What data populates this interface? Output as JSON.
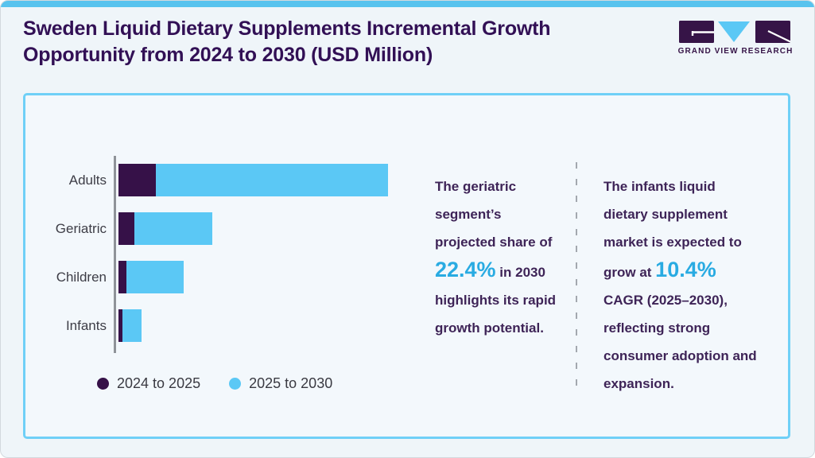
{
  "page": {
    "title_line1": "Sweden Liquid Dietary Supplements Incremental Growth",
    "title_line2": "Opportunity from 2024 to 2030 (USD Million)"
  },
  "logo": {
    "brand": "GRAND VIEW RESEARCH"
  },
  "chart_data": {
    "type": "bar",
    "orientation": "horizontal",
    "stacked": true,
    "title": "Sweden Liquid Dietary Supplements Incremental Growth Opportunity from 2024 to 2030 (USD Million)",
    "categories": [
      "Adults",
      "Geriatric",
      "Children",
      "Infants"
    ],
    "series": [
      {
        "name": "2024 to 2025",
        "color": "#361148",
        "values": [
          14,
          6,
          3,
          1.5
        ]
      },
      {
        "name": "2025 to 2030",
        "color": "#5bc8f5",
        "values": [
          86,
          28.7,
          21.3,
          7.1
        ]
      }
    ],
    "value_axis_note": "no numeric axis or data labels shown; values estimated in relative units where Adults total = 100",
    "xlim": [
      0,
      100
    ],
    "grid": false,
    "legend_position": "bottom-left"
  },
  "legend": {
    "items": [
      {
        "label": "2024 to 2025",
        "color": "#361148"
      },
      {
        "label": "2025 to 2030",
        "color": "#5bc8f5"
      }
    ]
  },
  "callouts": {
    "middle": {
      "before": "The geriatric segment’s projected share of ",
      "highlight": "22.4%",
      "after": " in 2030 highlights its rapid growth potential."
    },
    "right": {
      "before": "The infants liquid dietary supplement market is expected to grow at ",
      "highlight": "10.4%",
      "after": " CAGR (2025–2030), reflecting strong consumer adoption and expansion."
    }
  },
  "colors": {
    "accent_blue": "#5bc8f5",
    "dark_purple": "#361148",
    "title_purple": "#321055",
    "highlight_blue": "#29abe2",
    "card_border": "#6fd0f7",
    "top_strip": "#58c3ee",
    "page_bg": "#eff5f9",
    "card_bg": "#f3f8fc"
  }
}
